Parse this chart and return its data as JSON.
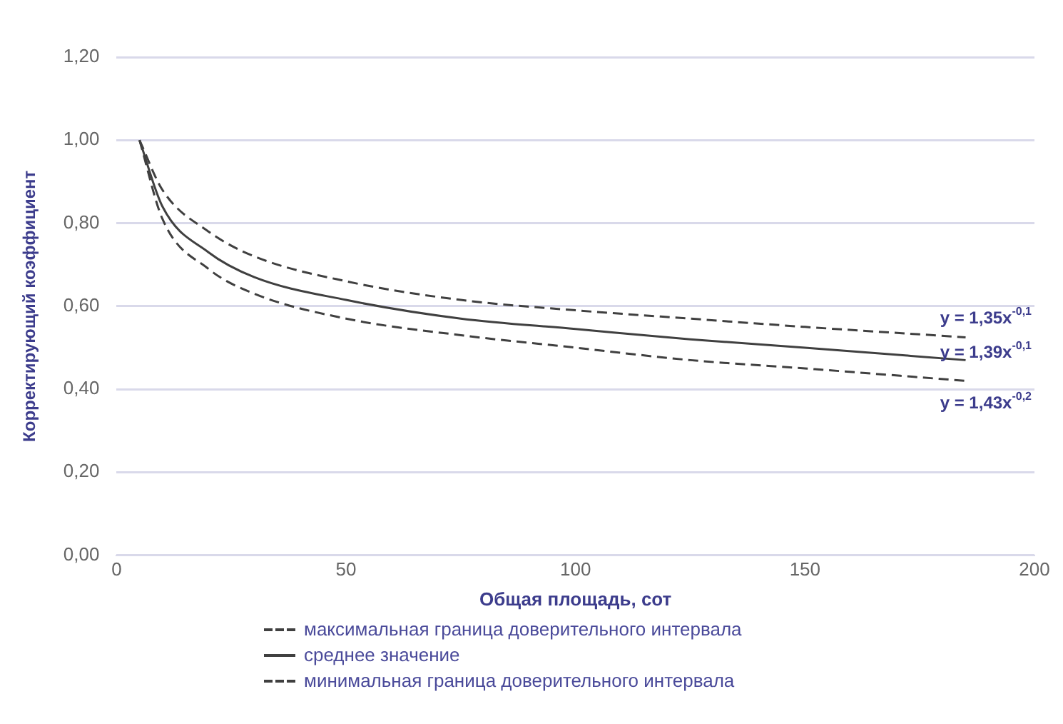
{
  "chart_data": {
    "type": "line",
    "xlabel": "Общая площадь, сот",
    "ylabel": "Корректирующий коэффициент",
    "x": [
      5,
      10,
      20,
      30,
      50,
      75,
      100,
      125,
      150,
      185
    ],
    "series": [
      {
        "name": "максимальная граница доверительного интервала",
        "color": "#404040",
        "line_style": "dashed",
        "values": [
          1.0,
          0.88,
          0.78,
          0.72,
          0.66,
          0.615,
          0.59,
          0.57,
          0.55,
          0.525
        ]
      },
      {
        "name": "среднее значение",
        "color": "#404040",
        "line_style": "solid",
        "values": [
          1.0,
          0.84,
          0.73,
          0.67,
          0.615,
          0.57,
          0.545,
          0.52,
          0.5,
          0.47
        ]
      },
      {
        "name": "минимальная граница доверительного интервала",
        "color": "#404040",
        "line_style": "dashed",
        "values": [
          1.0,
          0.81,
          0.69,
          0.63,
          0.57,
          0.53,
          0.5,
          0.47,
          0.45,
          0.42
        ]
      }
    ],
    "xlim": [
      0,
      200
    ],
    "xticks": [
      0,
      50,
      100,
      150,
      200
    ],
    "ylim": [
      0,
      1.2
    ],
    "yticks": [
      {
        "value": 0,
        "label": "0,00"
      },
      {
        "value": 0.2,
        "label": "0,20"
      },
      {
        "value": 0.4,
        "label": "0,40"
      },
      {
        "value": 0.6,
        "label": "0,60"
      },
      {
        "value": 0.8,
        "label": "0,80"
      },
      {
        "value": 1.0,
        "label": "1,00"
      },
      {
        "value": 1.2,
        "label": "1,20"
      }
    ],
    "grid": "y",
    "legend": "bottom",
    "marker": "none",
    "annotations": [
      "y = 1,35x$^{-0,1}$",
      "y = 1,39x$^{-0,1}$",
      "y = 1,43x$^{-0,2}$"
    ]
  }
}
